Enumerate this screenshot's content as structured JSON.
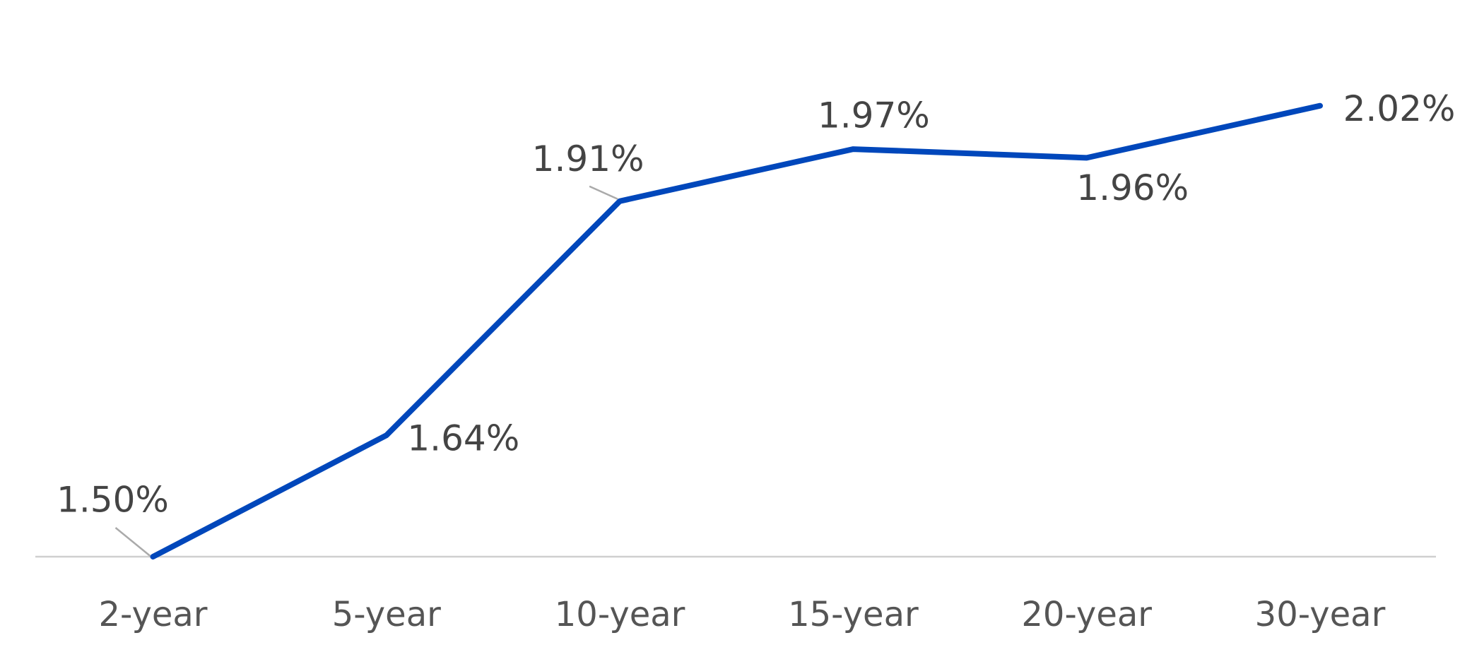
{
  "chart_data": {
    "type": "line",
    "categories": [
      "2-year",
      "5-year",
      "10-year",
      "15-year",
      "20-year",
      "30-year"
    ],
    "series": [
      {
        "color": "#0047bb",
        "values": [
          1.5,
          1.64,
          1.91,
          1.97,
          1.96,
          2.02
        ],
        "value_labels": [
          "1.50%",
          "1.64%",
          "1.91%",
          "1.97%",
          "1.96%",
          "2.02%"
        ]
      }
    ],
    "ylim": [
      1.5,
      2.1
    ],
    "grid": false
  }
}
